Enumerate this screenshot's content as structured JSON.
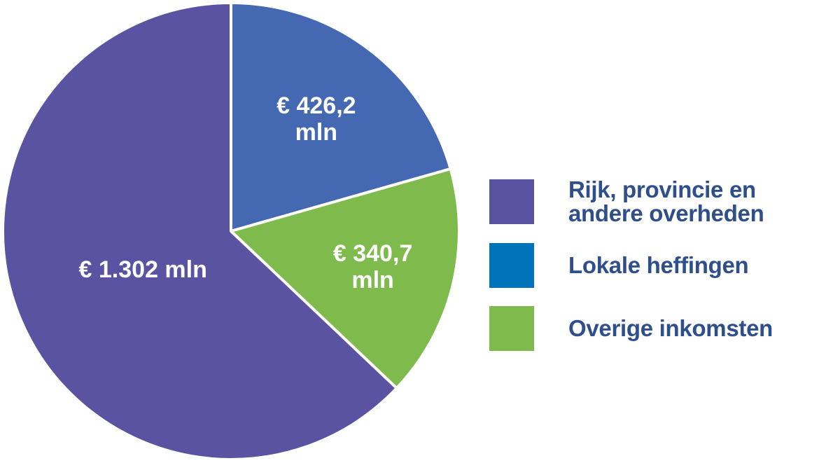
{
  "chart_data": {
    "type": "pie",
    "categories": [
      "Rijk, provincie en andere overheden",
      "Lokale heffingen",
      "Overige inkomsten"
    ],
    "values": [
      1302,
      426.2,
      340.7
    ],
    "labels": [
      [
        "€ 1.302 mln"
      ],
      [
        "€ 426,2",
        "mln"
      ],
      [
        "€ 340,7",
        "mln"
      ]
    ],
    "slice_colors": [
      "#5953a2",
      "#4468b1",
      "#7fbb4c"
    ],
    "slice_order_clockwise_from_top": [
      1,
      2,
      0
    ],
    "legend": {
      "placement": "right",
      "entries": [
        {
          "lines": [
            "Rijk, provincie en",
            "andere overheden"
          ],
          "color": "#5953a2"
        },
        {
          "lines": [
            "Lokale heffingen"
          ],
          "color": "#0074bb"
        },
        {
          "lines": [
            "Overige inkomsten"
          ],
          "color": "#7fbb4c"
        }
      ]
    }
  }
}
